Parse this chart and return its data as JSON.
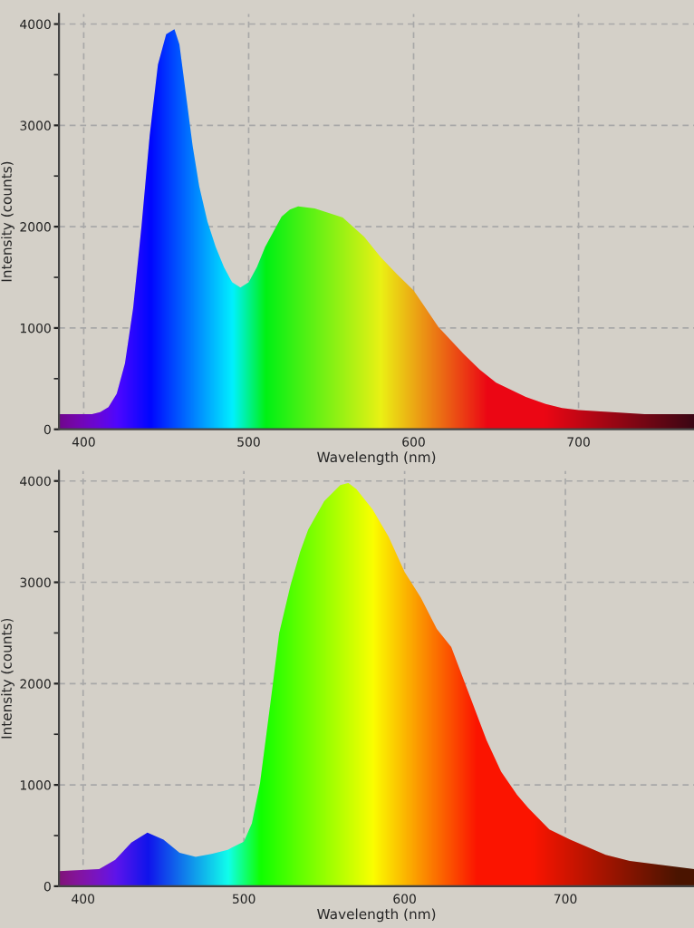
{
  "chart_data": [
    {
      "type": "area",
      "xlabel": "Wavelength (nm)",
      "ylabel": "Intensity (counts)",
      "xlim": [
        385,
        770
      ],
      "ylim": [
        0,
        4100
      ],
      "xticks": [
        400,
        500,
        600,
        700
      ],
      "yticks": [
        0,
        1000,
        2000,
        3000,
        4000
      ],
      "grid": true,
      "x": [
        385,
        405,
        410,
        415,
        420,
        425,
        430,
        435,
        440,
        445,
        450,
        455,
        458,
        462,
        466,
        470,
        475,
        480,
        485,
        490,
        495,
        500,
        505,
        510,
        515,
        520,
        525,
        530,
        540,
        557,
        570,
        580,
        590,
        600,
        615,
        630,
        640,
        650,
        668,
        680,
        690,
        700,
        720,
        740,
        770
      ],
      "series": [
        {
          "values": [
            150,
            150,
            170,
            220,
            350,
            650,
            1200,
            2000,
            2900,
            3600,
            3900,
            3950,
            3800,
            3300,
            2800,
            2400,
            2050,
            1800,
            1600,
            1450,
            1400,
            1450,
            1600,
            1800,
            1950,
            2100,
            2170,
            2200,
            2180,
            2090,
            1900,
            1700,
            1530,
            1370,
            1010,
            750,
            590,
            460,
            320,
            250,
            210,
            190,
            170,
            150,
            150
          ]
        }
      ]
    },
    {
      "type": "area",
      "xlabel": "Wavelength (nm)",
      "ylabel": "Intensity (counts)",
      "xlim": [
        385,
        780
      ],
      "ylim": [
        0,
        4100
      ],
      "xticks": [
        400,
        500,
        600,
        700
      ],
      "yticks": [
        0,
        1000,
        2000,
        3000,
        4000
      ],
      "grid": true,
      "x": [
        385,
        410,
        420,
        430,
        440,
        450,
        460,
        470,
        480,
        490,
        500,
        505,
        510,
        514,
        518,
        522,
        529,
        535,
        540,
        550,
        560,
        565,
        570,
        580,
        590,
        600,
        610,
        620,
        629,
        640,
        651,
        660,
        670,
        677,
        690,
        703,
        725,
        740,
        760,
        780
      ],
      "series": [
        {
          "values": [
            150,
            170,
            260,
            430,
            530,
            460,
            330,
            290,
            320,
            360,
            440,
            620,
            1010,
            1500,
            1990,
            2500,
            2970,
            3300,
            3520,
            3800,
            3960,
            3980,
            3920,
            3720,
            3450,
            3100,
            2850,
            2540,
            2360,
            1900,
            1440,
            1130,
            900,
            770,
            560,
            460,
            310,
            250,
            210,
            170
          ]
        }
      ]
    }
  ]
}
